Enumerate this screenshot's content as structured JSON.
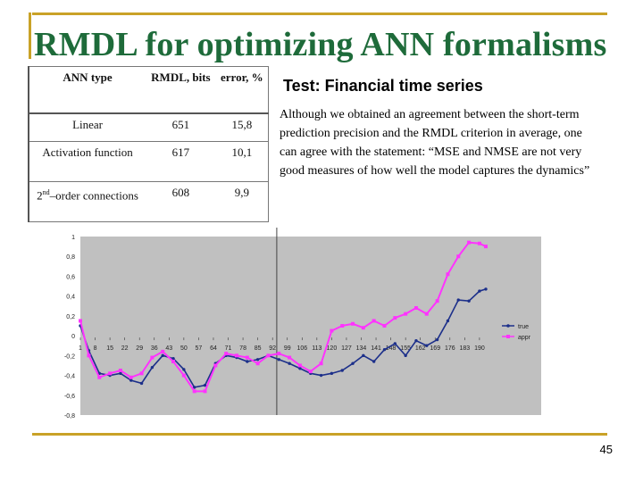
{
  "slide": {
    "title": "RMDL for optimizing ANN formalisms",
    "subtitle": "Test: Financial time series",
    "quote": "Although we obtained an agreement between the short-term prediction precision and the RMDL criterion in average, one can agree with the statement: “MSE and NMSE are not very good measures of how well the model captures the dynamics”",
    "page_number": "45"
  },
  "table": {
    "headers": [
      "ANN type",
      "RMDL, bits",
      "error, %"
    ],
    "rows": [
      {
        "type": "Linear",
        "type_sup": "",
        "type_rest": "",
        "rmdl": "651",
        "error": "15,8"
      },
      {
        "type": "Activation function",
        "type_sup": "",
        "type_rest": "",
        "rmdl": "617",
        "error": "10,1"
      },
      {
        "type": "2",
        "type_sup": "nd",
        "type_rest": "–order connections",
        "rmdl": "608",
        "error": "9,9"
      }
    ]
  },
  "colors": {
    "title": "#1e6b3a",
    "accent_line": "#c9a227",
    "plot_bg": "#c0c0c0",
    "true_series": "#1c2f8a",
    "appr_series": "#ff33ff"
  },
  "chart_data": {
    "type": "line",
    "title": "",
    "xlabel": "",
    "ylabel": "",
    "ylim": [
      -0.8,
      1
    ],
    "yticks": [
      "1",
      "0,8",
      "0,6",
      "0,4",
      "0,2",
      "0",
      "-0,2",
      "-0,4",
      "-0,6",
      "-0,8"
    ],
    "ytick_values": [
      1,
      0.8,
      0.6,
      0.4,
      0.2,
      0,
      -0.2,
      -0.4,
      -0.6,
      -0.8
    ],
    "xlim": [
      1,
      193
    ],
    "xticks": [
      "1",
      "8",
      "15",
      "22",
      "29",
      "36",
      "43",
      "50",
      "57",
      "64",
      "71",
      "78",
      "85",
      "92",
      "99",
      "106",
      "113",
      "120",
      "127",
      "134",
      "141",
      "148",
      "155",
      "162",
      "169",
      "176",
      "183",
      "190"
    ],
    "divider_x": 94,
    "legend": [
      "true",
      "appr"
    ],
    "series": [
      {
        "name": "true",
        "x": [
          1,
          5,
          10,
          15,
          20,
          25,
          30,
          35,
          40,
          45,
          50,
          55,
          60,
          65,
          70,
          75,
          80,
          85,
          90,
          95,
          100,
          105,
          110,
          115,
          120,
          125,
          130,
          135,
          140,
          145,
          150,
          155,
          160,
          165,
          170,
          175,
          180,
          185,
          190,
          193
        ],
        "values": [
          0.1,
          -0.15,
          -0.38,
          -0.4,
          -0.38,
          -0.45,
          -0.48,
          -0.32,
          -0.2,
          -0.23,
          -0.34,
          -0.52,
          -0.5,
          -0.28,
          -0.2,
          -0.22,
          -0.26,
          -0.24,
          -0.2,
          -0.24,
          -0.28,
          -0.33,
          -0.38,
          -0.4,
          -0.38,
          -0.35,
          -0.28,
          -0.2,
          -0.26,
          -0.14,
          -0.08,
          -0.2,
          -0.05,
          -0.1,
          -0.04,
          0.15,
          0.36,
          0.35,
          0.45,
          0.47
        ]
      },
      {
        "name": "appr",
        "x": [
          1,
          5,
          10,
          15,
          20,
          25,
          30,
          35,
          40,
          45,
          50,
          55,
          60,
          65,
          70,
          75,
          80,
          85,
          90,
          95,
          100,
          105,
          110,
          115,
          120,
          125,
          130,
          135,
          140,
          145,
          150,
          155,
          160,
          165,
          170,
          175,
          180,
          185,
          190,
          193
        ],
        "values": [
          0.15,
          -0.2,
          -0.42,
          -0.38,
          -0.35,
          -0.42,
          -0.38,
          -0.22,
          -0.16,
          -0.26,
          -0.4,
          -0.56,
          -0.56,
          -0.3,
          -0.18,
          -0.2,
          -0.22,
          -0.28,
          -0.2,
          -0.18,
          -0.22,
          -0.3,
          -0.36,
          -0.28,
          0.05,
          0.1,
          0.12,
          0.08,
          0.15,
          0.1,
          0.18,
          0.22,
          0.28,
          0.22,
          0.35,
          0.62,
          0.8,
          0.94,
          0.93,
          0.9
        ]
      }
    ]
  }
}
